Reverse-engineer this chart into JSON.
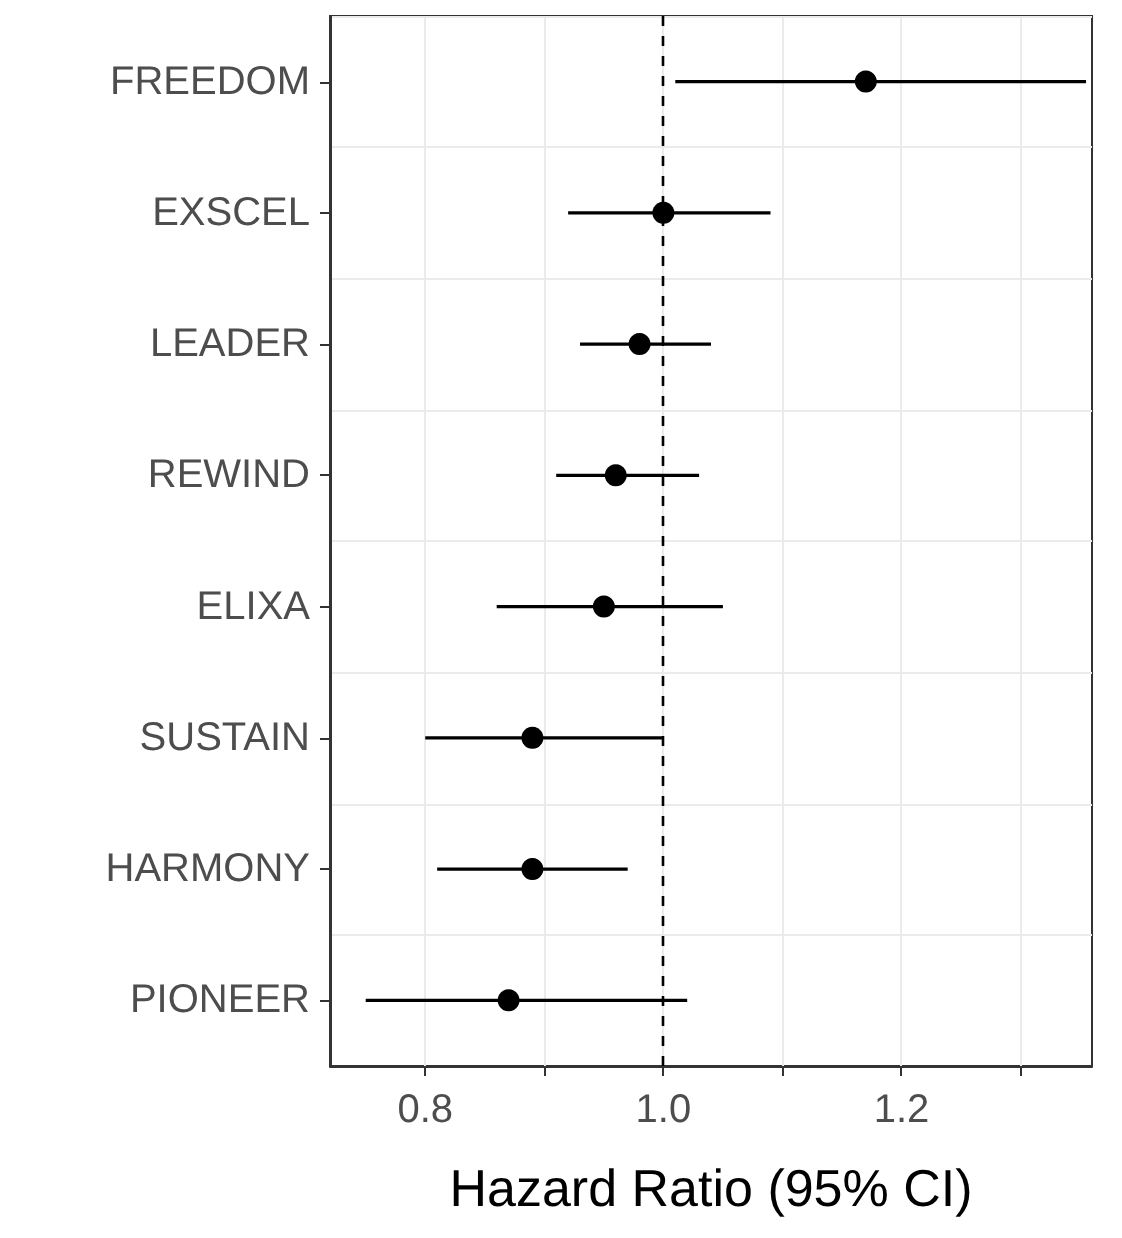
{
  "chart_data": {
    "type": "scatter",
    "orientation": "horizontal",
    "categories": [
      "FREEDOM",
      "EXSCEL",
      "LEADER",
      "REWIND",
      "ELIXA",
      "SUSTAIN",
      "HARMONY",
      "PIONEER"
    ],
    "series": [
      {
        "color": "#000000",
        "values": [
          1.17,
          1.0,
          0.98,
          0.96,
          0.95,
          0.89,
          0.89,
          0.87
        ],
        "errors": [
          [
            1.01,
            1.355
          ],
          [
            0.92,
            1.09
          ],
          [
            0.93,
            1.04
          ],
          [
            0.91,
            1.03
          ],
          [
            0.86,
            1.05
          ],
          [
            0.8,
            1.0
          ],
          [
            0.81,
            0.97
          ],
          [
            0.75,
            1.02
          ]
        ]
      }
    ],
    "xlabel": "Hazard Ratio (95% CI)",
    "xlim": [
      0.72,
      1.36
    ],
    "xticks": [
      0.8,
      {
        "value": 0.9,
        "label": null
      },
      {
        "value": 1.0,
        "label": "1.0"
      },
      {
        "value": 1.1,
        "label": null
      },
      1.2,
      {
        "value": 1.3,
        "label": null
      }
    ],
    "grid": true,
    "marker": "circle",
    "ref_lines": [
      {
        "axis": "x",
        "value": 1.0,
        "line_style": "dashed",
        "color": "#000000"
      }
    ]
  }
}
